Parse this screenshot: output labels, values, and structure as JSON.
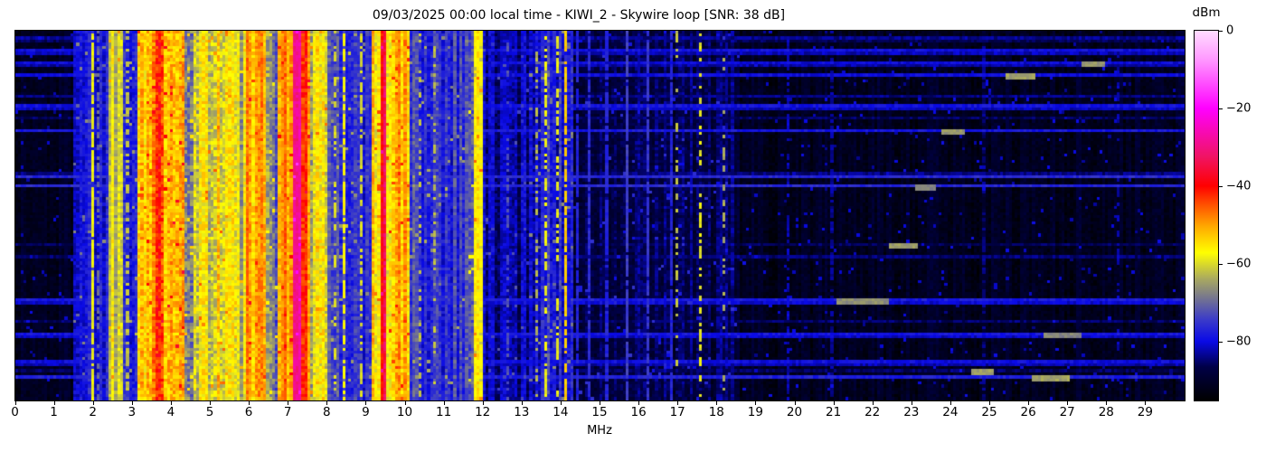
{
  "title": "09/03/2025 00:00 local time - KIWI_2 - Skywire loop [SNR: 38 dB]",
  "x_axis": {
    "label": "MHz",
    "range": [
      0,
      30
    ],
    "ticks": [
      0,
      1,
      2,
      3,
      4,
      5,
      6,
      7,
      8,
      9,
      10,
      11,
      12,
      13,
      14,
      15,
      16,
      17,
      18,
      19,
      20,
      21,
      22,
      23,
      24,
      25,
      26,
      27,
      28,
      29
    ]
  },
  "colorbar": {
    "label": "dBm",
    "range": [
      -95,
      0
    ],
    "ticks": [
      {
        "label": "0",
        "value": 0
      },
      {
        "label": "−20",
        "value": -20
      },
      {
        "label": "−40",
        "value": -40
      },
      {
        "label": "−60",
        "value": -60
      },
      {
        "label": "−80",
        "value": -80
      }
    ]
  },
  "chart_data": {
    "type": "heatmap",
    "title": "09/03/2025 00:00 local time - KIWI_2 - Skywire loop [SNR: 38 dB]",
    "xlabel": "MHz",
    "ylabel": "",
    "x_range": [
      0,
      30
    ],
    "y_axis": "time (unlabeled rows, newest at top)",
    "value_unit": "dBm",
    "value_range": [
      -95,
      0
    ],
    "colorbar_ticks": [
      0,
      -20,
      -40,
      -60,
      -80
    ],
    "legend": "none",
    "grid": {
      "cols": 400,
      "rows": 120
    },
    "seed": 1337,
    "colormap_stops": [
      [
        0.0,
        "#000000"
      ],
      [
        0.09,
        "#000046"
      ],
      [
        0.16,
        "#0a0ae6"
      ],
      [
        0.22,
        "#3c3cc8"
      ],
      [
        0.28,
        "#78788c"
      ],
      [
        0.33,
        "#aaaa5f"
      ],
      [
        0.4,
        "#ffff00"
      ],
      [
        0.47,
        "#ffaa00"
      ],
      [
        0.53,
        "#ff5000"
      ],
      [
        0.58,
        "#ff0000"
      ],
      [
        0.66,
        "#f01464"
      ],
      [
        0.79,
        "#ff00ff"
      ],
      [
        0.92,
        "#ff96ff"
      ],
      [
        1.0,
        "#ffdcff"
      ]
    ],
    "bands": [
      [
        0.0,
        1.5,
        -91,
        2.5
      ],
      [
        1.5,
        2.4,
        -78,
        4.5
      ],
      [
        2.4,
        2.75,
        -60,
        5
      ],
      [
        2.75,
        3.15,
        -74,
        5.5
      ],
      [
        3.15,
        3.5,
        -52,
        7
      ],
      [
        3.5,
        4.35,
        -47,
        7
      ],
      [
        4.35,
        4.75,
        -63,
        8
      ],
      [
        4.75,
        5.6,
        -57,
        7
      ],
      [
        5.6,
        5.9,
        -62,
        6
      ],
      [
        5.9,
        6.1,
        -48,
        5
      ],
      [
        6.1,
        6.45,
        -53,
        6
      ],
      [
        6.45,
        6.75,
        -66,
        7
      ],
      [
        6.75,
        7.1,
        -50,
        5
      ],
      [
        7.1,
        7.35,
        -27,
        4
      ],
      [
        7.35,
        7.6,
        -46,
        5
      ],
      [
        7.6,
        8.05,
        -58,
        7
      ],
      [
        8.05,
        8.6,
        -73,
        5
      ],
      [
        8.6,
        9.15,
        -76,
        5
      ],
      [
        9.15,
        9.35,
        -55,
        6
      ],
      [
        9.35,
        9.5,
        -38,
        6
      ],
      [
        9.5,
        10.15,
        -53,
        6
      ],
      [
        10.15,
        11.6,
        -75,
        5
      ],
      [
        11.6,
        11.75,
        -68,
        6
      ],
      [
        11.75,
        12.0,
        -57,
        5
      ],
      [
        12.0,
        13.2,
        -83,
        4
      ],
      [
        13.2,
        14.35,
        -78,
        5
      ],
      [
        14.35,
        18.6,
        -87,
        3.5
      ],
      [
        18.6,
        30.0,
        -91,
        2.5
      ]
    ],
    "carriers": [
      [
        1.95,
        -58,
        0.85
      ],
      [
        2.1,
        -70,
        0.6
      ],
      [
        2.9,
        -62,
        0.5
      ],
      [
        8.2,
        -60,
        0.4
      ],
      [
        8.45,
        -57,
        0.7
      ],
      [
        8.9,
        -60,
        0.55
      ],
      [
        10.4,
        -62,
        0.25
      ],
      [
        10.75,
        -62,
        0.3
      ],
      [
        11.8,
        -56,
        0.9
      ],
      [
        11.95,
        -57,
        0.8
      ],
      [
        12.6,
        -72,
        0.3
      ],
      [
        13.35,
        -63,
        0.4
      ],
      [
        13.6,
        -58,
        0.55
      ],
      [
        13.9,
        -59,
        0.5
      ],
      [
        14.17,
        -53,
        0.8
      ],
      [
        14.45,
        -77,
        0.9
      ],
      [
        14.75,
        -76,
        0.8
      ],
      [
        15.2,
        -77,
        0.85
      ],
      [
        15.7,
        -74,
        0.9
      ],
      [
        16.25,
        -75,
        0.85
      ],
      [
        16.8,
        -77,
        0.9
      ],
      [
        17.0,
        -62,
        0.35
      ],
      [
        17.62,
        -59,
        0.45
      ],
      [
        18.2,
        -64,
        0.3
      ],
      [
        19.85,
        -82,
        0.6
      ],
      [
        20.95,
        -83,
        0.7
      ],
      [
        24.85,
        -84,
        0.5
      ],
      [
        28.3,
        -82,
        0.4
      ]
    ],
    "row_events": {
      "count": 19,
      "floor_min": -86,
      "floor_max": -76,
      "double_prob": 0.45
    },
    "bright_segments": {
      "count": 9,
      "level": -66,
      "freq_min": 20.0,
      "freq_max": 29.3,
      "span_min": 0.3,
      "span_max": 1.2
    },
    "speckle": {
      "prob": 0.025,
      "boost": 7
    }
  }
}
